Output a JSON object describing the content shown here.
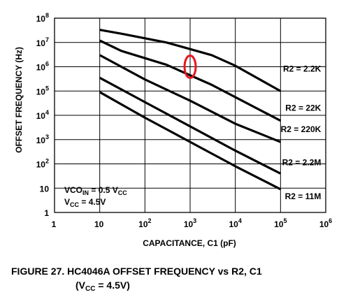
{
  "chart_data": {
    "type": "line",
    "xscale": "log",
    "yscale": "log",
    "xlim": [
      1,
      1000000
    ],
    "ylim": [
      1,
      100000000
    ],
    "x_ticks": [
      {
        "base": "1",
        "exp": ""
      },
      {
        "base": "10",
        "exp": ""
      },
      {
        "base": "10",
        "exp": "2"
      },
      {
        "base": "10",
        "exp": "3"
      },
      {
        "base": "10",
        "exp": "4"
      },
      {
        "base": "10",
        "exp": "5"
      },
      {
        "base": "10",
        "exp": "6"
      }
    ],
    "y_ticks": [
      {
        "base": "1",
        "exp": ""
      },
      {
        "base": "10",
        "exp": ""
      },
      {
        "base": "10",
        "exp": "2"
      },
      {
        "base": "10",
        "exp": "3"
      },
      {
        "base": "10",
        "exp": "4"
      },
      {
        "base": "10",
        "exp": "5"
      },
      {
        "base": "10",
        "exp": "6"
      },
      {
        "base": "10",
        "exp": "7"
      },
      {
        "base": "10",
        "exp": "8"
      }
    ],
    "xlabel": "CAPACITANCE, C1 (pF)",
    "ylabel": "OFFSET FREQUENCY (Hz)",
    "grid": true,
    "series": [
      {
        "name": "R2 = 2.2K",
        "x": [
          10,
          30,
          300,
          3000,
          10000,
          100000
        ],
        "y": [
          33000000,
          23000000,
          10000000,
          3000000,
          1100000,
          100000
        ]
      },
      {
        "name": "R2 = 22K",
        "x": [
          10,
          30,
          300,
          3000,
          100000
        ],
        "y": [
          12000000,
          4500000,
          1200000,
          180000,
          6000
        ]
      },
      {
        "name": "R2 = 220K",
        "x": [
          10,
          100,
          1000,
          10000,
          100000
        ],
        "y": [
          3000000,
          300000,
          40000,
          4500,
          800
        ]
      },
      {
        "name": "R2 = 2.2M",
        "x": [
          10,
          100,
          1000,
          10000,
          100000
        ],
        "y": [
          350000,
          35000,
          3500,
          350,
          40
        ]
      },
      {
        "name": "R2 = 11M",
        "x": [
          10,
          100,
          1000,
          10000,
          100000
        ],
        "y": [
          90000,
          8000,
          800,
          80,
          9
        ]
      }
    ],
    "annotations": {
      "vco_main": "VCO",
      "vco_sub": "IN",
      "vco_eq": " = 0.5 V",
      "vco_cc": "CC",
      "vcc_main": "V",
      "vcc_sub": "CC",
      "vcc_eq": " = 4.5V"
    },
    "highlight_marker": {
      "x": 1000,
      "y": 1000000,
      "color": "#e8141e"
    }
  },
  "caption": {
    "line1": "FIGURE 27.  HC4046A OFFSET FREQUENCY vs R2, C1",
    "line2_open": "(V",
    "line2_sub": "CC",
    "line2_close": " = 4.5V)"
  }
}
